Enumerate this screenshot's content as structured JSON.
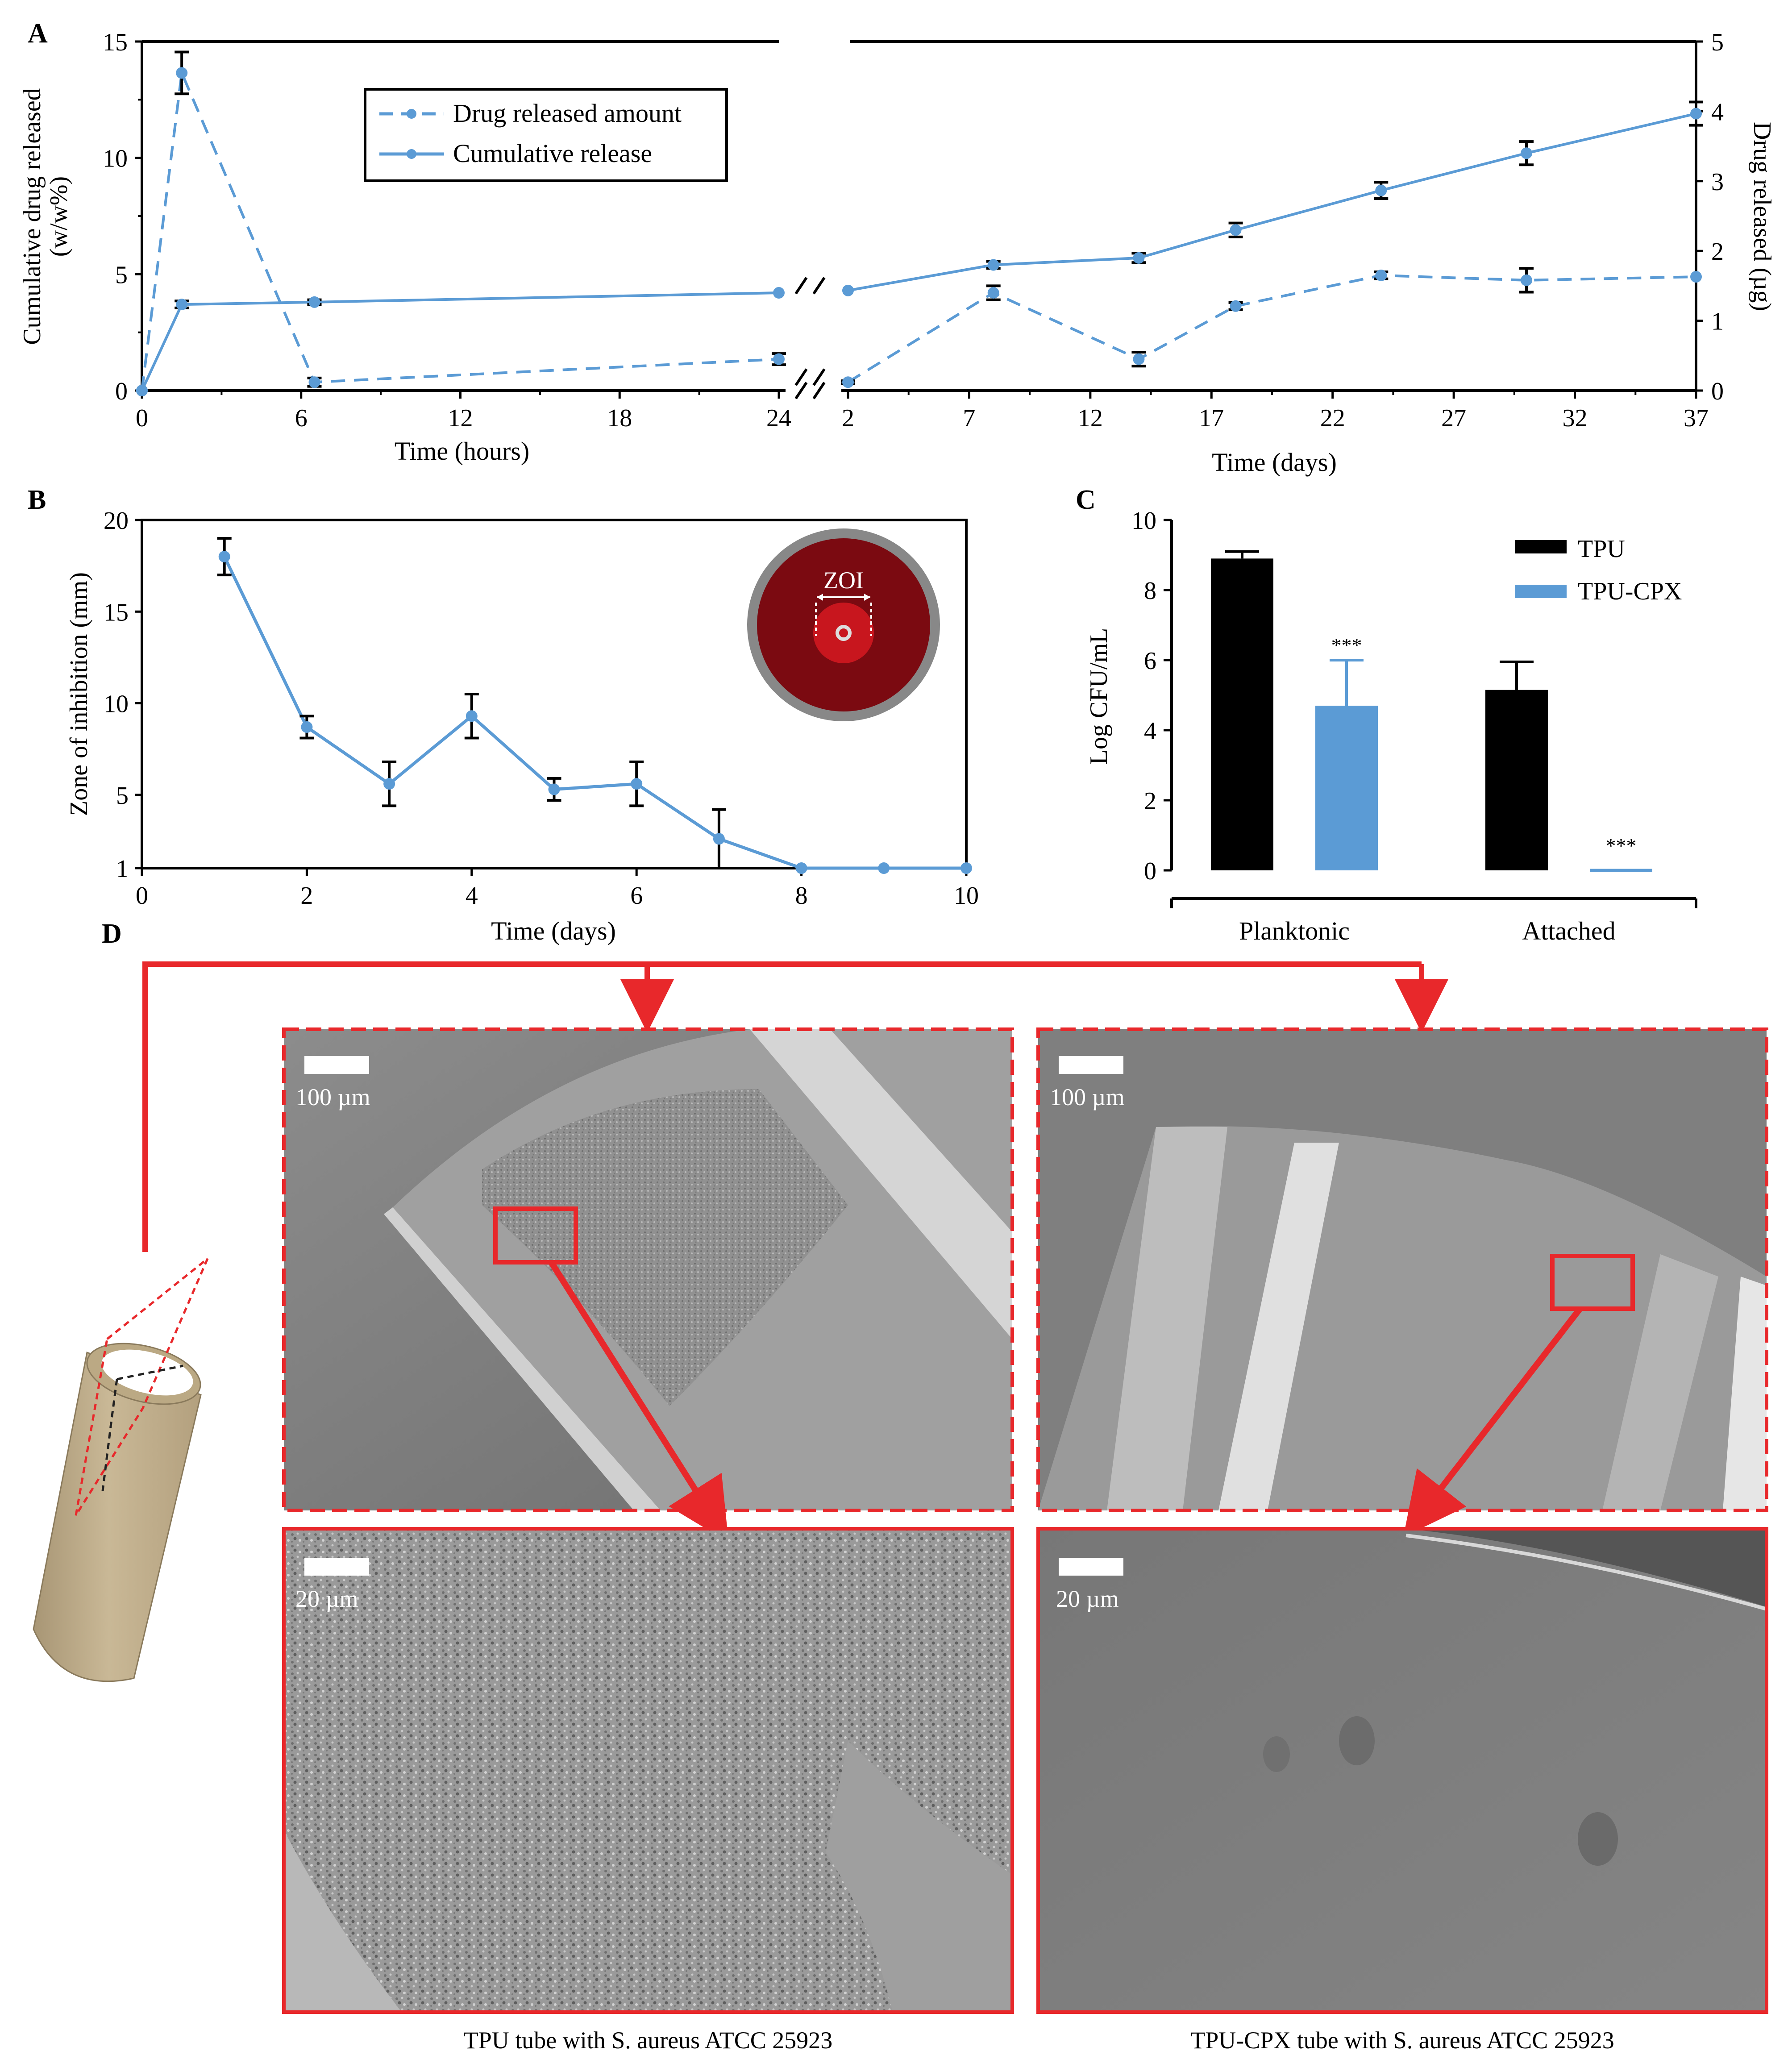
{
  "colors": {
    "series_blue": "#5b9bd5",
    "black_bar": "#000000",
    "sem_frame_red": "#e8282b",
    "tube_beige": "#c2b08e",
    "zoi_outer_gray": "#888888",
    "zoi_dark_red": "#7b0a11",
    "zoi_red": "#c8161e"
  },
  "icons": {
    "tube": "cylinder-tube-illustration",
    "zoi_disc": "agar-plate-inhibition-zone-icon"
  },
  "chart_data": [
    {
      "panel": "A",
      "type": "line",
      "panel_label": "A",
      "y_left_label": [
        "Cumulative drug released",
        "(w/w%)"
      ],
      "y_right_label": "Drug released (µg)",
      "x_label_hours": "Time (hours)",
      "x_label_days": "Time (days)",
      "x_hours_ticks": [
        "0",
        "6",
        "12",
        "18",
        "24"
      ],
      "x_days_ticks": [
        "2",
        "7",
        "12",
        "17",
        "22",
        "27",
        "32",
        "37"
      ],
      "y_left_ticks": [
        "0",
        "5",
        "10",
        "15"
      ],
      "y_right_ticks": [
        "0",
        "1",
        "2",
        "3",
        "4",
        "5"
      ],
      "x_hours_range": [
        0,
        24
      ],
      "x_days_range": [
        2,
        37
      ],
      "y_left_range": [
        0,
        15
      ],
      "y_right_range": [
        0,
        5
      ],
      "axis_break": true,
      "legend_position": "top-left",
      "series": [
        {
          "name": "Drug released amount",
          "style": "dashed",
          "axis": "right",
          "points_hours": [
            {
              "x": 0,
              "y": 0.0,
              "err": 0.0
            },
            {
              "x": 1.5,
              "y": 4.55,
              "err": 0.3
            },
            {
              "x": 6.5,
              "y": 0.12,
              "err": 0.06
            }
          ],
          "points_days": [
            {
              "x": 24,
              "y": 0.45,
              "err": 0.08,
              "hours_axis": true
            },
            {
              "x": 2,
              "y": 0.12,
              "err": 0.02
            },
            {
              "x": 8,
              "y": 1.4,
              "err": 0.1
            },
            {
              "x": 14,
              "y": 0.45,
              "err": 0.1
            },
            {
              "x": 18,
              "y": 1.21,
              "err": 0.05
            },
            {
              "x": 24,
              "y": 1.65,
              "err": 0.05
            },
            {
              "x": 30,
              "y": 1.58,
              "err": 0.17
            },
            {
              "x": 37,
              "y": 1.63,
              "err": 0.0
            }
          ]
        },
        {
          "name": "Cumulative release",
          "style": "solid",
          "axis": "left",
          "points_hours": [
            {
              "x": 0,
              "y": 0.0,
              "err": 0.0
            },
            {
              "x": 1.5,
              "y": 3.7,
              "err": 0.15
            },
            {
              "x": 6.5,
              "y": 3.8,
              "err": 0.1
            },
            {
              "x": 24,
              "y": 4.2,
              "err": 0.0
            }
          ],
          "points_days": [
            {
              "x": 2,
              "y": 4.3,
              "err": 0.0
            },
            {
              "x": 8,
              "y": 5.4,
              "err": 0.15
            },
            {
              "x": 14,
              "y": 5.7,
              "err": 0.2
            },
            {
              "x": 18,
              "y": 6.9,
              "err": 0.3
            },
            {
              "x": 24,
              "y": 8.6,
              "err": 0.35
            },
            {
              "x": 30,
              "y": 10.2,
              "err": 0.5
            },
            {
              "x": 37,
              "y": 11.9,
              "err": 0.5
            }
          ]
        }
      ]
    },
    {
      "panel": "B",
      "type": "line",
      "panel_label": "B",
      "ylabel": "Zone of   inhibition (mm)",
      "xlabel": "Time (days)",
      "x_ticks": [
        "0",
        "2",
        "4",
        "6",
        "8",
        "10"
      ],
      "y_ticks": [
        "1",
        "5",
        "10",
        "15",
        "20"
      ],
      "xlim": [
        0,
        10
      ],
      "ylim": [
        1,
        20
      ],
      "inset_label": "ZOI",
      "series": [
        {
          "name": "",
          "points": [
            {
              "x": 1,
              "y": 18.0,
              "err": 1.0
            },
            {
              "x": 2,
              "y": 8.7,
              "err": 0.6
            },
            {
              "x": 3,
              "y": 5.6,
              "err": 1.2
            },
            {
              "x": 4,
              "y": 9.3,
              "err": 1.2
            },
            {
              "x": 5,
              "y": 5.3,
              "err": 0.6
            },
            {
              "x": 6,
              "y": 5.6,
              "err": 1.2
            },
            {
              "x": 7,
              "y": 2.6,
              "err": 1.6
            },
            {
              "x": 8,
              "y": 1.0,
              "err": 0.0
            },
            {
              "x": 9,
              "y": 1.0,
              "err": 0.0
            },
            {
              "x": 10,
              "y": 1.0,
              "err": 0.0
            }
          ]
        }
      ]
    },
    {
      "panel": "C",
      "type": "bar",
      "panel_label": "C",
      "ylabel": "Log CFU/mL",
      "categories": [
        "Planktonic",
        "Attached"
      ],
      "y_ticks": [
        "0",
        "2",
        "4",
        "6",
        "8",
        "10"
      ],
      "ylim": [
        0,
        10
      ],
      "legend_position": "top-right",
      "series": [
        {
          "name": "TPU",
          "values": [
            8.9,
            5.15
          ],
          "errors": [
            0.2,
            0.8
          ],
          "sig": [
            "",
            ""
          ]
        },
        {
          "name": "TPU-CPX",
          "values": [
            4.7,
            0.0
          ],
          "errors": [
            1.3,
            0.0
          ],
          "sig": [
            "***",
            "***"
          ]
        }
      ]
    }
  ],
  "panel_d": {
    "label": "D",
    "scale_bar_low": "100 µm",
    "scale_bar_high": "20 µm",
    "caption_left": "TPU tube with S. aureus ATCC 25923",
    "caption_right": "TPU-CPX tube with S. aureus ATCC 25923"
  }
}
